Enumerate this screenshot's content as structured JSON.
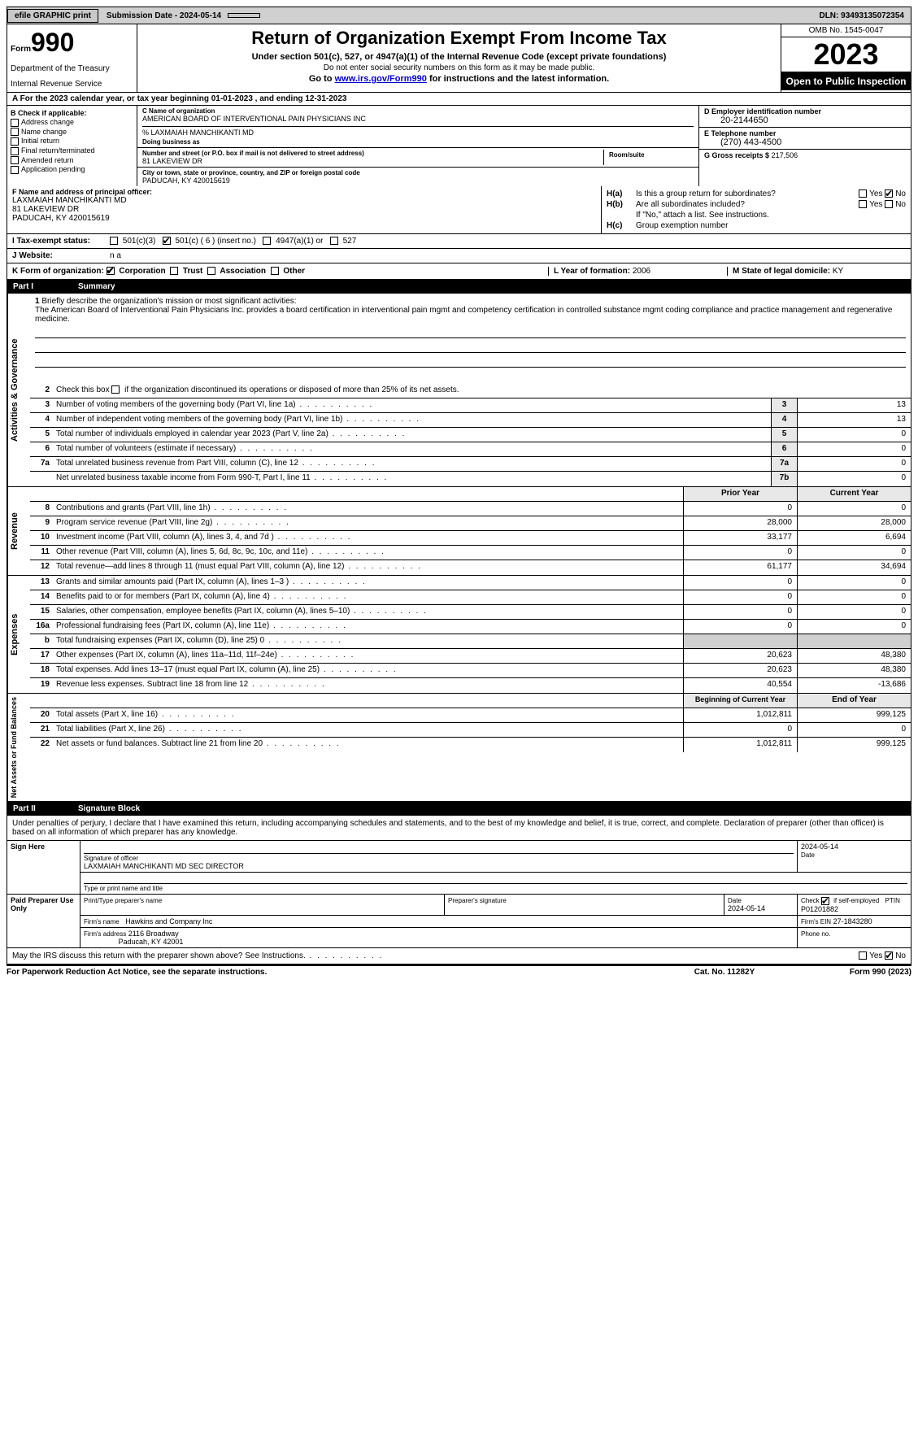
{
  "topbar": {
    "efile": "efile GRAPHIC print",
    "submission": "Submission Date - 2024-05-14",
    "dln": "DLN: 93493135072354"
  },
  "header": {
    "form_prefix": "Form",
    "form_num": "990",
    "title": "Return of Organization Exempt From Income Tax",
    "subtitle1": "Under section 501(c), 527, or 4947(a)(1) of the Internal Revenue Code (except private foundations)",
    "subtitle2": "Do not enter social security numbers on this form as it may be made public.",
    "subtitle3_pre": "Go to ",
    "subtitle3_link": "www.irs.gov/Form990",
    "subtitle3_post": " for instructions and the latest information.",
    "dept": "Department of the Treasury",
    "irs": "Internal Revenue Service",
    "omb": "OMB No. 1545-0047",
    "year": "2023",
    "open": "Open to Public Inspection"
  },
  "line_a": "A For the 2023 calendar year, or tax year beginning 01-01-2023   , and ending 12-31-2023",
  "section_b": {
    "hd": "B Check if applicable:",
    "items": [
      "Address change",
      "Name change",
      "Initial return",
      "Final return/terminated",
      "Amended return",
      "Application pending"
    ]
  },
  "section_c": {
    "name_lbl": "C Name of organization",
    "name": "AMERICAN BOARD OF INTERVENTIONAL PAIN PHYSICIANS INC",
    "care_of": "% LAXMAIAH MANCHIKANTI MD",
    "dba_lbl": "Doing business as",
    "dba": "",
    "addr_lbl": "Number and street (or P.O. box if mail is not delivered to street address)",
    "addr": "81 LAKEVIEW DR",
    "room_lbl": "Room/suite",
    "city_lbl": "City or town, state or province, country, and ZIP or foreign postal code",
    "city": "PADUCAH, KY  420015619"
  },
  "section_d": {
    "ein_lbl": "D Employer identification number",
    "ein": "20-2144650",
    "tel_lbl": "E Telephone number",
    "tel": "(270) 443-4500",
    "gross_lbl": "G Gross receipts $",
    "gross": "217,506"
  },
  "section_f": {
    "lbl": "F  Name and address of principal officer:",
    "name": "LAXMAIAH MANCHIKANTI MD",
    "addr1": "81 LAKEVIEW DR",
    "addr2": "PADUCAH, KY  420015619"
  },
  "section_h": {
    "ha_lbl": "H(a)",
    "ha_txt": "Is this a group return for subordinates?",
    "hb_lbl": "H(b)",
    "hb_txt": "Are all subordinates included?",
    "hb_note": "If \"No,\" attach a list. See instructions.",
    "hc_lbl": "H(c)",
    "hc_txt": "Group exemption number",
    "yes": "Yes",
    "no": "No"
  },
  "section_i": {
    "lbl": "I     Tax-exempt status:",
    "opts": [
      "501(c)(3)",
      "501(c) ( 6 ) (insert no.)",
      "4947(a)(1) or",
      "527"
    ]
  },
  "section_j": {
    "lbl": "J     Website:",
    "val": "n a"
  },
  "section_k": {
    "lbl": "K Form of organization:",
    "opts": [
      "Corporation",
      "Trust",
      "Association",
      "Other"
    ]
  },
  "section_l": {
    "lbl": "L Year of formation:",
    "val": "2006"
  },
  "section_m": {
    "lbl": "M State of legal domicile:",
    "val": "KY"
  },
  "part1": {
    "hdr_num": "Part I",
    "hdr_title": "Summary",
    "side_labels": [
      "Activities & Governance",
      "Revenue",
      "Expenses",
      "Net Assets or Fund Balances"
    ],
    "l1_num": "1",
    "l1_txt": "Briefly describe the organization's mission or most significant activities:",
    "l1_mission": "The American Board of Interventional Pain Physicians Inc. provides a board certification in interventional pain mgmt and competency certification in controlled substance mgmt coding compliance and practice management and regenerative medicine.",
    "l2_num": "2",
    "l2_txt": "Check this box       if the organization discontinued its operations or disposed of more than 25% of its net assets.",
    "rows_ag": [
      {
        "n": "3",
        "t": "Number of voting members of the governing body (Part VI, line 1a)",
        "b": "3",
        "v": "13"
      },
      {
        "n": "4",
        "t": "Number of independent voting members of the governing body (Part VI, line 1b)",
        "b": "4",
        "v": "13"
      },
      {
        "n": "5",
        "t": "Total number of individuals employed in calendar year 2023 (Part V, line 2a)",
        "b": "5",
        "v": "0"
      },
      {
        "n": "6",
        "t": "Total number of volunteers (estimate if necessary)",
        "b": "6",
        "v": "0"
      },
      {
        "n": "7a",
        "t": "Total unrelated business revenue from Part VIII, column (C), line 12",
        "b": "7a",
        "v": "0"
      },
      {
        "n": "",
        "t": "Net unrelated business taxable income from Form 990-T, Part I, line 11",
        "b": "7b",
        "v": "0"
      }
    ],
    "col_hdrs": {
      "prior": "Prior Year",
      "current": "Current Year",
      "beg": "Beginning of Current Year",
      "end": "End of Year"
    },
    "rows_rev": [
      {
        "n": "8",
        "t": "Contributions and grants (Part VIII, line 1h)",
        "p": "0",
        "c": "0"
      },
      {
        "n": "9",
        "t": "Program service revenue (Part VIII, line 2g)",
        "p": "28,000",
        "c": "28,000"
      },
      {
        "n": "10",
        "t": "Investment income (Part VIII, column (A), lines 3, 4, and 7d )",
        "p": "33,177",
        "c": "6,694"
      },
      {
        "n": "11",
        "t": "Other revenue (Part VIII, column (A), lines 5, 6d, 8c, 9c, 10c, and 11e)",
        "p": "0",
        "c": "0"
      },
      {
        "n": "12",
        "t": "Total revenue—add lines 8 through 11 (must equal Part VIII, column (A), line 12)",
        "p": "61,177",
        "c": "34,694"
      }
    ],
    "rows_exp": [
      {
        "n": "13",
        "t": "Grants and similar amounts paid (Part IX, column (A), lines 1–3 )",
        "p": "0",
        "c": "0"
      },
      {
        "n": "14",
        "t": "Benefits paid to or for members (Part IX, column (A), line 4)",
        "p": "0",
        "c": "0"
      },
      {
        "n": "15",
        "t": "Salaries, other compensation, employee benefits (Part IX, column (A), lines 5–10)",
        "p": "0",
        "c": "0"
      },
      {
        "n": "16a",
        "t": "Professional fundraising fees (Part IX, column (A), line 11e)",
        "p": "0",
        "c": "0"
      },
      {
        "n": "b",
        "t": "Total fundraising expenses (Part IX, column (D), line 25) 0",
        "p": "",
        "c": "",
        "grey": true
      },
      {
        "n": "17",
        "t": "Other expenses (Part IX, column (A), lines 11a–11d, 11f–24e)",
        "p": "20,623",
        "c": "48,380"
      },
      {
        "n": "18",
        "t": "Total expenses. Add lines 13–17 (must equal Part IX, column (A), line 25)",
        "p": "20,623",
        "c": "48,380"
      },
      {
        "n": "19",
        "t": "Revenue less expenses. Subtract line 18 from line 12",
        "p": "40,554",
        "c": "-13,686"
      }
    ],
    "rows_net": [
      {
        "n": "20",
        "t": "Total assets (Part X, line 16)",
        "p": "1,012,811",
        "c": "999,125"
      },
      {
        "n": "21",
        "t": "Total liabilities (Part X, line 26)",
        "p": "0",
        "c": "0"
      },
      {
        "n": "22",
        "t": "Net assets or fund balances. Subtract line 21 from line 20",
        "p": "1,012,811",
        "c": "999,125"
      }
    ]
  },
  "part2": {
    "hdr_num": "Part II",
    "hdr_title": "Signature Block",
    "declaration": "Under penalties of perjury, I declare that I have examined this return, including accompanying schedules and statements, and to the best of my knowledge and belief, it is true, correct, and complete. Declaration of preparer (other than officer) is based on all information of which preparer has any knowledge.",
    "sign_here": "Sign Here",
    "sig_officer_lbl": "Signature of officer",
    "sig_officer": "LAXMAIAH MANCHIKANTI MD  SEC DIRECTOR",
    "sig_title_lbl": "Type or print name and title",
    "sig_date": "2024-05-14",
    "date_lbl": "Date",
    "paid": "Paid Preparer Use Only",
    "prep_name_lbl": "Print/Type preparer's name",
    "prep_sig_lbl": "Preparer's signature",
    "prep_date_lbl": "Date",
    "prep_date": "2024-05-14",
    "self_emp_lbl": "Check        if self-employed",
    "ptin_lbl": "PTIN",
    "ptin": "P01201882",
    "firm_name_lbl": "Firm's name",
    "firm_name": "Hawkins and Company Inc",
    "firm_ein_lbl": "Firm's EIN",
    "firm_ein": "27-1843280",
    "firm_addr_lbl": "Firm's address",
    "firm_addr1": "2116 Broadway",
    "firm_addr2": "Paducah, KY  42001",
    "phone_lbl": "Phone no.",
    "may_irs": "May the IRS discuss this return with the preparer shown above? See Instructions.",
    "yes": "Yes",
    "no": "No"
  },
  "footer": {
    "left": "For Paperwork Reduction Act Notice, see the separate instructions.",
    "mid": "Cat. No. 11282Y",
    "right": "Form 990 (2023)"
  }
}
